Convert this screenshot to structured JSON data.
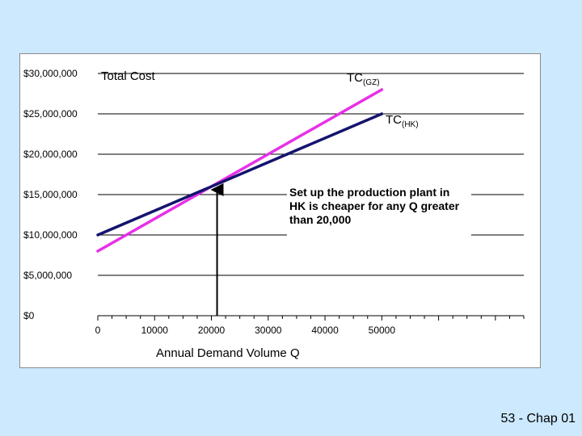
{
  "chart_data": {
    "type": "line",
    "title": "Total Cost",
    "xlabel": "Annual  Demand Volume  Q",
    "ylabel": "",
    "xlim": [
      0,
      75000
    ],
    "ylim": [
      0,
      30000000
    ],
    "x_ticks": [
      0,
      10000,
      20000,
      30000,
      40000,
      50000
    ],
    "x_tick_labels": [
      "0",
      "10000",
      "20000",
      "30000",
      "40000",
      "50000"
    ],
    "y_ticks": [
      0,
      5000000,
      10000000,
      15000000,
      20000000,
      25000000,
      30000000
    ],
    "y_tick_labels": [
      "$0",
      "$5,000,000",
      "$10,000,000",
      "$15,000,000",
      "$20,000,000",
      "$25,000,000",
      "$30,000,000"
    ],
    "grid": "horizontal",
    "series": [
      {
        "name": "TC",
        "subscript": "(GZ)",
        "color": "#e830e8",
        "x": [
          0,
          50000
        ],
        "y": [
          8000000,
          28000000
        ]
      },
      {
        "name": "TC",
        "subscript": "(HK)",
        "color": "#14146e",
        "x": [
          0,
          50000
        ],
        "y": [
          10000000,
          25000000
        ]
      }
    ],
    "annotation": {
      "lines": [
        "Set up the production plant in",
        "HK is cheaper for any Q greater",
        "than 20,000"
      ],
      "arrow_x": 21000
    }
  },
  "footer": {
    "text": "53 - Chap 01"
  }
}
